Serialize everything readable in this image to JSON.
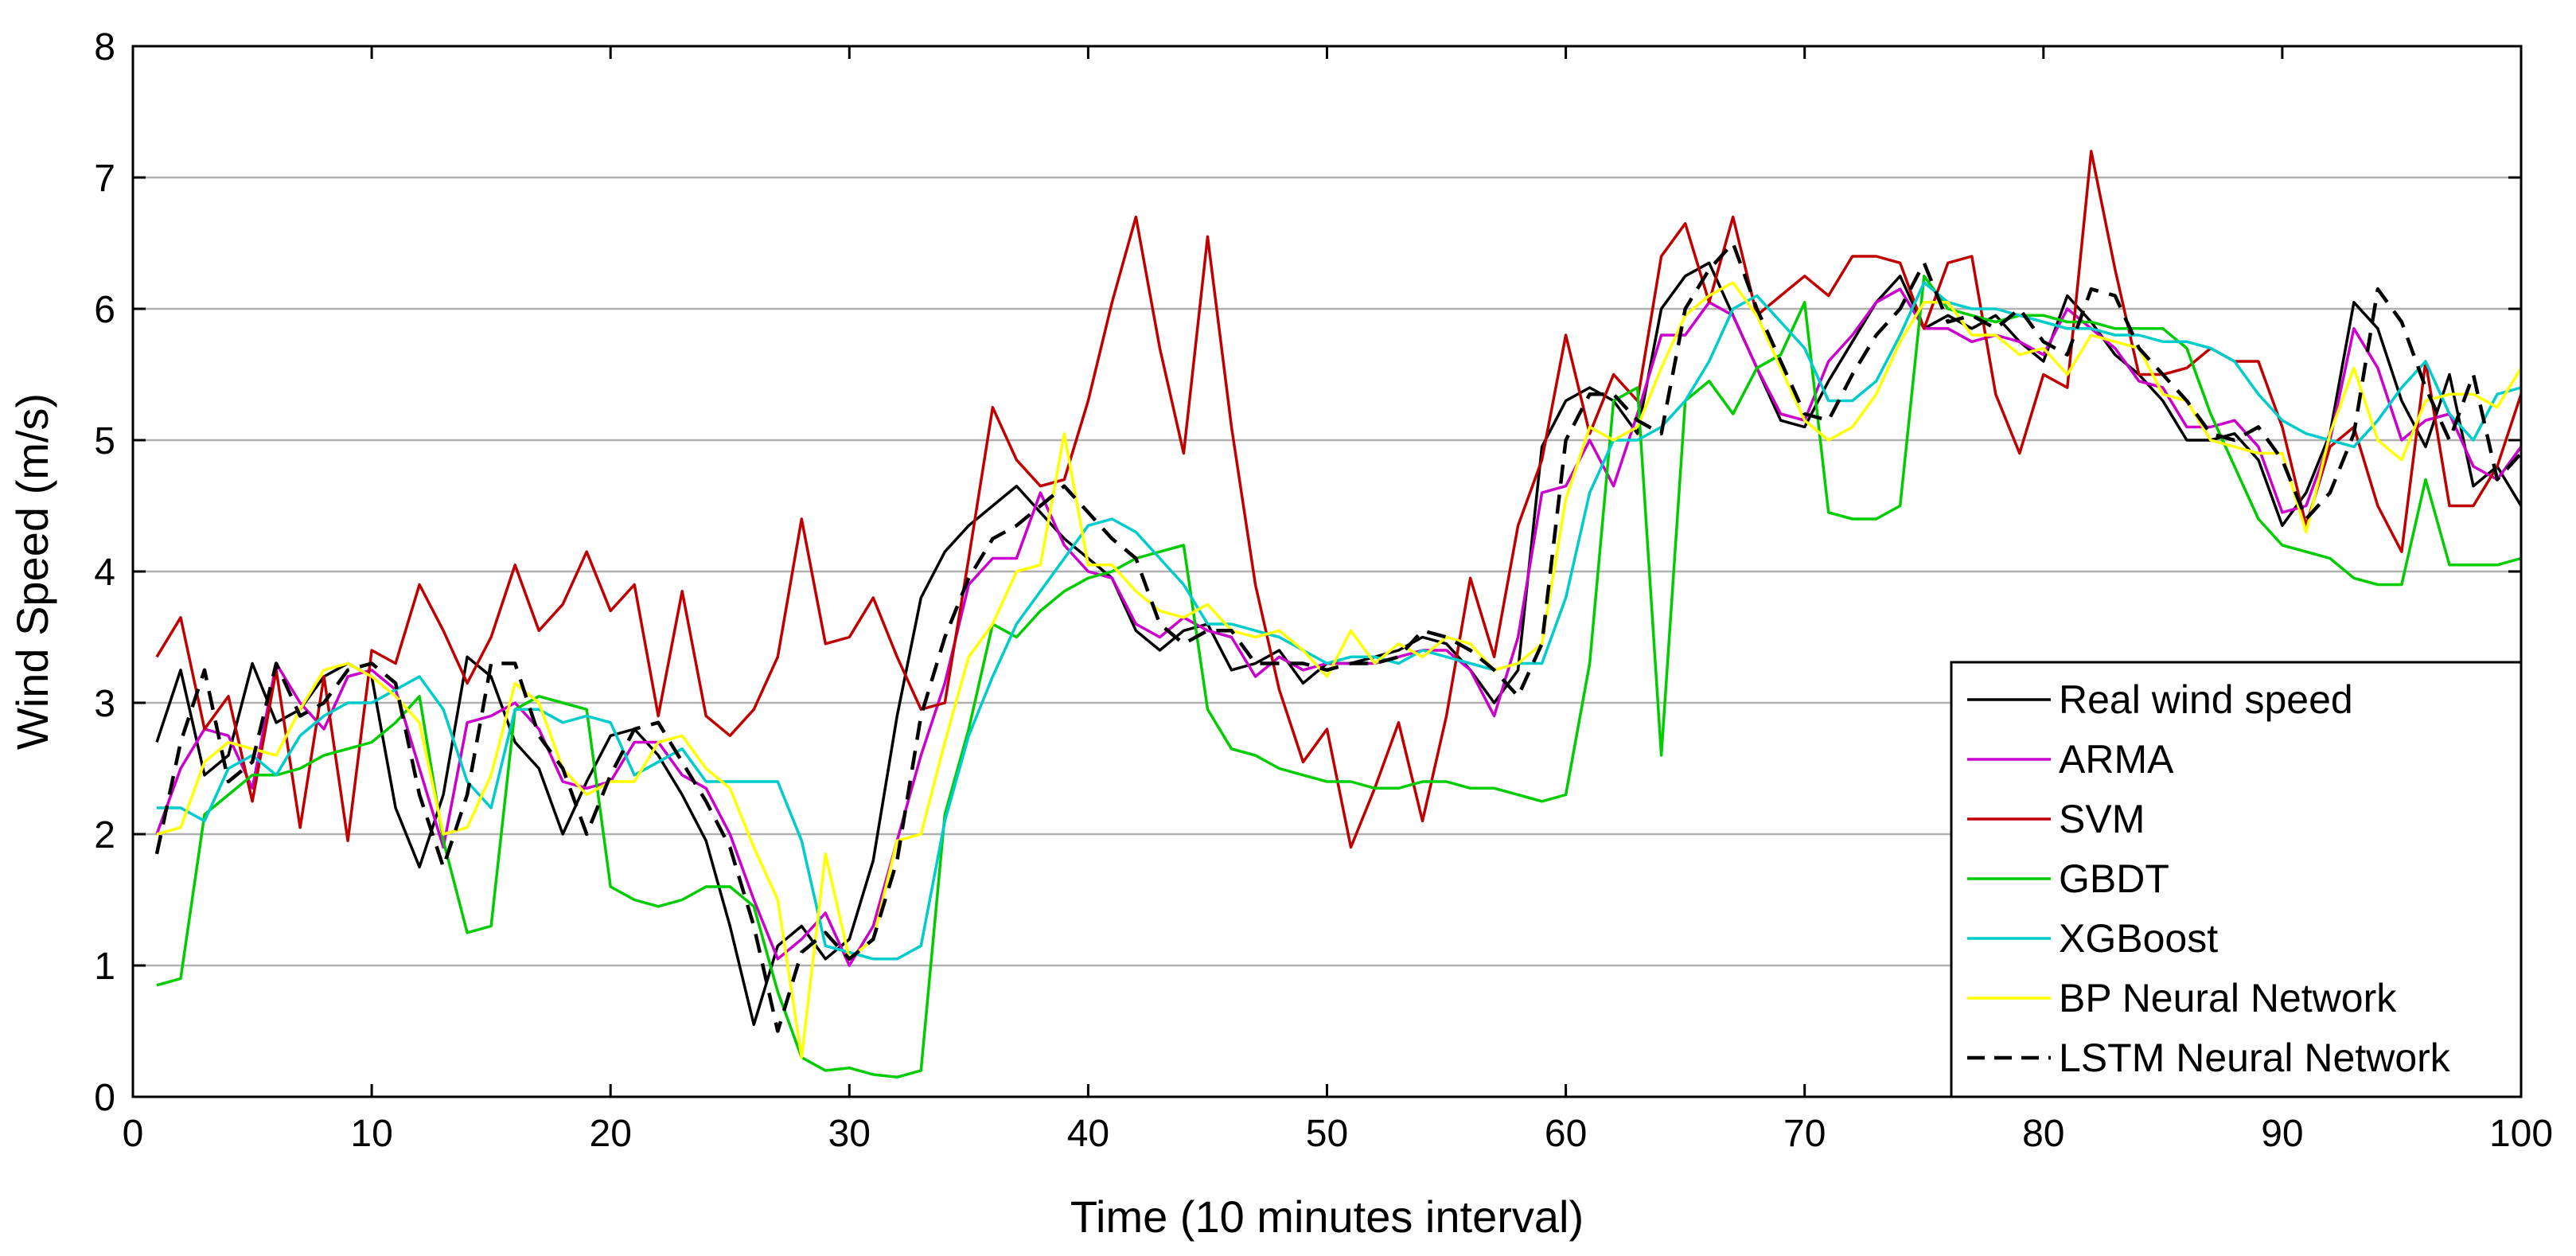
{
  "chart_data": {
    "type": "line",
    "title": "",
    "xlabel": "Time (10 minutes interval)",
    "ylabel": "Wind Speed (m/s)",
    "xlim": [
      0,
      100
    ],
    "ylim": [
      0,
      8
    ],
    "xticks": [
      0,
      10,
      20,
      30,
      40,
      50,
      60,
      70,
      80,
      90,
      100
    ],
    "yticks": [
      0,
      1,
      2,
      3,
      4,
      5,
      6,
      7,
      8
    ],
    "grid": "horizontal",
    "legend_position": "bottom-right",
    "x": [
      1,
      2,
      3,
      4,
      5,
      6,
      7,
      8,
      9,
      10,
      11,
      12,
      13,
      14,
      15,
      16,
      17,
      18,
      19,
      20,
      21,
      22,
      23,
      24,
      25,
      26,
      27,
      28,
      29,
      30,
      31,
      32,
      33,
      34,
      35,
      36,
      37,
      38,
      39,
      40,
      41,
      42,
      43,
      44,
      45,
      46,
      47,
      48,
      49,
      50,
      51,
      52,
      53,
      54,
      55,
      56,
      57,
      58,
      59,
      60,
      61,
      62,
      63,
      64,
      65,
      66,
      67,
      68,
      69,
      70,
      71,
      72,
      73,
      74,
      75,
      76,
      77,
      78,
      79,
      80,
      81,
      82,
      83,
      84,
      85,
      86,
      87,
      88,
      89,
      90,
      91,
      92,
      93,
      94,
      95,
      96,
      97,
      98,
      99,
      100
    ],
    "series": [
      {
        "name": "Real wind speed",
        "color": "#000000",
        "dash": "solid",
        "values": [
          2.7,
          3.25,
          2.45,
          2.6,
          3.3,
          2.85,
          2.95,
          3.2,
          3.3,
          3.2,
          2.2,
          1.75,
          2.3,
          3.35,
          3.2,
          2.7,
          2.5,
          2.0,
          2.4,
          2.75,
          2.8,
          2.6,
          2.3,
          1.95,
          1.3,
          0.55,
          1.15,
          1.3,
          1.05,
          1.2,
          1.8,
          2.9,
          3.8,
          4.15,
          4.35,
          4.5,
          4.65,
          4.45,
          4.25,
          4.1,
          3.95,
          3.55,
          3.4,
          3.55,
          3.6,
          3.25,
          3.3,
          3.4,
          3.15,
          3.3,
          3.3,
          3.35,
          3.4,
          3.5,
          3.45,
          3.25,
          3.0,
          3.25,
          4.95,
          5.3,
          5.4,
          5.3,
          5.05,
          6.0,
          6.25,
          6.35,
          5.95,
          5.55,
          5.15,
          5.1,
          5.45,
          5.75,
          6.05,
          6.25,
          5.85,
          5.95,
          5.85,
          5.95,
          5.75,
          5.6,
          6.1,
          5.9,
          5.65,
          5.5,
          5.3,
          5.0,
          5.0,
          5.05,
          4.85,
          4.35,
          4.6,
          5.05,
          6.05,
          5.85,
          5.3,
          4.95,
          5.5,
          4.65,
          4.8,
          4.5
        ]
      },
      {
        "name": "ARMA",
        "color": "#cc00cc",
        "dash": "solid",
        "values": [
          2.0,
          2.5,
          2.8,
          2.75,
          2.35,
          3.3,
          3.0,
          2.8,
          3.2,
          3.25,
          3.1,
          2.5,
          1.9,
          2.85,
          2.9,
          3.0,
          2.8,
          2.4,
          2.35,
          2.4,
          2.7,
          2.7,
          2.45,
          2.35,
          2.0,
          1.5,
          1.05,
          1.2,
          1.4,
          1.0,
          1.3,
          1.95,
          2.6,
          3.15,
          3.9,
          4.1,
          4.1,
          4.6,
          4.2,
          4.0,
          3.95,
          3.6,
          3.5,
          3.65,
          3.55,
          3.5,
          3.2,
          3.35,
          3.25,
          3.3,
          3.3,
          3.3,
          3.35,
          3.4,
          3.4,
          3.25,
          2.9,
          3.5,
          4.6,
          4.65,
          5.0,
          4.65,
          5.2,
          5.8,
          5.8,
          6.05,
          5.95,
          5.55,
          5.2,
          5.15,
          5.6,
          5.8,
          6.05,
          6.15,
          5.85,
          5.85,
          5.75,
          5.8,
          5.75,
          5.65,
          6.0,
          5.85,
          5.7,
          5.45,
          5.4,
          5.1,
          5.1,
          5.15,
          4.95,
          4.45,
          4.5,
          5.0,
          5.85,
          5.55,
          5.0,
          5.15,
          5.2,
          4.8,
          4.7,
          4.95
        ]
      },
      {
        "name": "SVM",
        "color": "#c00000",
        "dash": "solid",
        "values": [
          3.35,
          3.65,
          2.8,
          3.05,
          2.25,
          3.25,
          2.05,
          3.2,
          1.95,
          3.4,
          3.3,
          3.9,
          3.55,
          3.15,
          3.5,
          4.05,
          3.55,
          3.75,
          4.15,
          3.7,
          3.9,
          2.9,
          3.85,
          2.9,
          2.75,
          2.95,
          3.35,
          4.4,
          3.45,
          3.5,
          3.8,
          3.35,
          2.95,
          3.0,
          4.1,
          5.25,
          4.85,
          4.65,
          4.7,
          5.3,
          6.05,
          6.7,
          5.7,
          4.9,
          6.55,
          5.1,
          3.9,
          3.1,
          2.55,
          2.8,
          1.9,
          2.35,
          2.85,
          2.1,
          2.9,
          3.95,
          3.35,
          4.35,
          4.85,
          5.8,
          5.05,
          5.5,
          5.3,
          6.4,
          6.65,
          6.05,
          6.7,
          5.95,
          6.1,
          6.25,
          6.1,
          6.4,
          6.4,
          6.35,
          5.85,
          6.35,
          6.4,
          5.35,
          4.9,
          5.5,
          5.4,
          7.2,
          6.3,
          5.5,
          5.5,
          5.55,
          5.7,
          5.6,
          5.6,
          5.1,
          4.35,
          4.95,
          5.1,
          4.5,
          4.15,
          5.6,
          4.5,
          4.5,
          4.8,
          5.35
        ]
      },
      {
        "name": "GBDT",
        "color": "#00cc00",
        "dash": "solid",
        "values": [
          0.85,
          0.9,
          2.15,
          2.3,
          2.45,
          2.45,
          2.5,
          2.6,
          2.65,
          2.7,
          2.85,
          3.05,
          1.95,
          1.25,
          1.3,
          2.95,
          3.05,
          3.0,
          2.95,
          1.6,
          1.5,
          1.45,
          1.5,
          1.6,
          1.6,
          1.45,
          0.8,
          0.3,
          0.2,
          0.22,
          0.17,
          0.15,
          0.2,
          2.15,
          2.8,
          3.6,
          3.5,
          3.7,
          3.85,
          3.95,
          4.0,
          4.1,
          4.15,
          4.2,
          2.95,
          2.65,
          2.6,
          2.5,
          2.45,
          2.4,
          2.4,
          2.35,
          2.35,
          2.4,
          2.4,
          2.35,
          2.35,
          2.3,
          2.25,
          2.3,
          3.3,
          5.3,
          5.4,
          2.6,
          5.3,
          5.45,
          5.2,
          5.55,
          5.65,
          6.05,
          4.45,
          4.4,
          4.4,
          4.5,
          6.25,
          6.0,
          5.95,
          5.9,
          5.95,
          5.95,
          5.9,
          5.9,
          5.85,
          5.85,
          5.85,
          5.7,
          5.2,
          4.8,
          4.4,
          4.2,
          4.15,
          4.1,
          3.95,
          3.9,
          3.9,
          4.7,
          4.05,
          4.05,
          4.05,
          4.1
        ]
      },
      {
        "name": "XGBoost",
        "color": "#00cccc",
        "dash": "solid",
        "values": [
          2.2,
          2.2,
          2.1,
          2.5,
          2.6,
          2.45,
          2.75,
          2.9,
          3.0,
          3.0,
          3.1,
          3.2,
          2.95,
          2.4,
          2.2,
          2.95,
          2.95,
          2.85,
          2.9,
          2.85,
          2.45,
          2.55,
          2.65,
          2.4,
          2.4,
          2.4,
          2.4,
          1.95,
          1.15,
          1.1,
          1.05,
          1.05,
          1.15,
          2.1,
          2.75,
          3.2,
          3.6,
          3.85,
          4.1,
          4.35,
          4.4,
          4.3,
          4.1,
          3.9,
          3.6,
          3.6,
          3.55,
          3.5,
          3.4,
          3.3,
          3.35,
          3.35,
          3.3,
          3.4,
          3.35,
          3.3,
          3.25,
          3.3,
          3.3,
          3.8,
          4.6,
          5.0,
          5.0,
          5.1,
          5.3,
          5.6,
          6.0,
          6.1,
          5.9,
          5.7,
          5.3,
          5.3,
          5.45,
          5.8,
          6.2,
          6.05,
          6.0,
          6.0,
          5.95,
          5.9,
          5.85,
          5.85,
          5.8,
          5.8,
          5.75,
          5.75,
          5.7,
          5.6,
          5.35,
          5.15,
          5.05,
          5.0,
          4.95,
          5.15,
          5.4,
          5.6,
          5.2,
          5.0,
          5.35,
          5.4
        ]
      },
      {
        "name": "BP Neural Network",
        "color": "#ffff00",
        "dash": "solid",
        "values": [
          2.0,
          2.05,
          2.55,
          2.7,
          2.65,
          2.6,
          2.95,
          3.25,
          3.3,
          3.2,
          3.05,
          2.85,
          2.0,
          2.05,
          2.45,
          3.15,
          3.0,
          2.5,
          2.3,
          2.4,
          2.4,
          2.7,
          2.75,
          2.5,
          2.35,
          1.9,
          1.5,
          0.3,
          1.85,
          1.05,
          1.2,
          1.95,
          2.0,
          2.7,
          3.35,
          3.6,
          4.0,
          4.05,
          5.05,
          4.05,
          4.05,
          3.85,
          3.7,
          3.65,
          3.75,
          3.55,
          3.5,
          3.55,
          3.4,
          3.2,
          3.55,
          3.3,
          3.45,
          3.35,
          3.5,
          3.45,
          3.25,
          3.3,
          3.45,
          4.55,
          5.1,
          5.0,
          5.1,
          5.55,
          5.95,
          6.1,
          6.2,
          5.95,
          5.55,
          5.15,
          5.0,
          5.1,
          5.35,
          5.75,
          6.05,
          6.05,
          5.8,
          5.8,
          5.65,
          5.7,
          5.5,
          5.8,
          5.75,
          5.7,
          5.35,
          5.3,
          5.0,
          4.95,
          4.9,
          4.9,
          4.3,
          5.05,
          5.55,
          5.0,
          4.85,
          5.3,
          5.35,
          5.35,
          5.25,
          5.55
        ]
      },
      {
        "name": "LSTM Neural Network",
        "color": "#000000",
        "dash": "dashed",
        "values": [
          1.85,
          2.7,
          3.25,
          2.4,
          2.55,
          3.3,
          2.9,
          3.0,
          3.25,
          3.3,
          3.15,
          2.3,
          1.75,
          2.3,
          3.3,
          3.3,
          2.75,
          2.5,
          2.0,
          2.45,
          2.8,
          2.85,
          2.55,
          2.25,
          1.9,
          1.3,
          0.5,
          1.1,
          1.25,
          1.05,
          1.2,
          1.8,
          2.9,
          3.5,
          3.95,
          4.25,
          4.35,
          4.5,
          4.65,
          4.45,
          4.25,
          4.1,
          3.6,
          3.45,
          3.55,
          3.55,
          3.3,
          3.3,
          3.3,
          3.25,
          3.3,
          3.3,
          3.35,
          3.55,
          3.5,
          3.4,
          3.25,
          3.05,
          3.45,
          5.0,
          5.35,
          5.35,
          5.15,
          5.05,
          6.0,
          6.3,
          6.5,
          6.0,
          5.6,
          5.2,
          5.15,
          5.5,
          5.8,
          6.0,
          6.35,
          5.9,
          5.95,
          5.85,
          6.0,
          5.75,
          5.65,
          6.15,
          6.1,
          5.7,
          5.5,
          5.3,
          5.05,
          5.0,
          5.1,
          4.85,
          4.4,
          4.6,
          5.05,
          6.15,
          5.9,
          5.4,
          5.0,
          5.5,
          4.7,
          4.9
        ]
      }
    ]
  }
}
